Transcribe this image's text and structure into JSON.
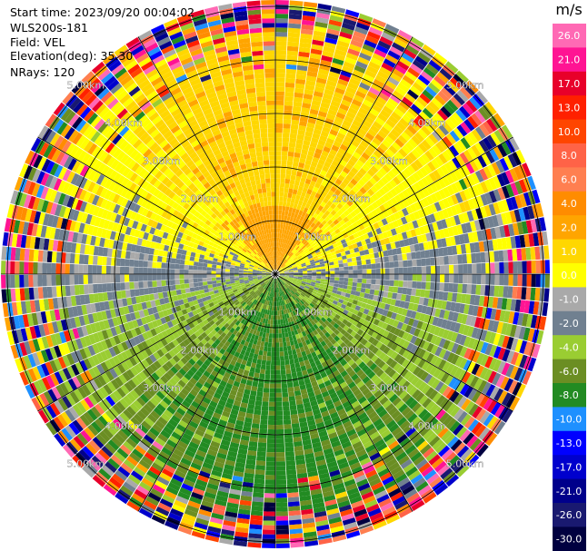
{
  "header": {
    "start_time": "Start time: 2023/09/20 00:04:02",
    "station": "WLS200s-181",
    "field": "Field: VEL",
    "elevation": "Elevation(deg): 35.30",
    "nrays": "NRays: 120"
  },
  "chart_data": {
    "type": "heatmap",
    "subtype": "polar-ppi",
    "nrays": 120,
    "ring_labels": [
      "1.00km",
      "2.00km",
      "3.00km",
      "4.00km",
      "5.00km"
    ],
    "ring_label_sides": [
      "upper-left",
      "upper-right",
      "lower-left",
      "lower-right"
    ],
    "colorbar": {
      "title": "m/s",
      "ticks": [
        "26.0",
        "21.0",
        "17.0",
        "13.0",
        "10.0",
        "8.0",
        "6.0",
        "4.0",
        "2.0",
        "1.0",
        "0.0",
        "-1.0",
        "-2.0",
        "-4.0",
        "-6.0",
        "-8.0",
        "-10.0",
        "-13.0",
        "-17.0",
        "-21.0",
        "-26.0",
        "-30.0"
      ],
      "colors": [
        "#ff69b4",
        "#ff1493",
        "#e8002a",
        "#ff2000",
        "#ff4500",
        "#ff6347",
        "#ff7f50",
        "#ff8c00",
        "#ffa500",
        "#ffd700",
        "#ffff00",
        "#a9a9a9",
        "#708090",
        "#9acd32",
        "#6b8e23",
        "#228b22",
        "#1e90ff",
        "#0000ff",
        "#0000cd",
        "#00008b",
        "#191970",
        "#000040"
      ]
    },
    "velocity_pattern": "positive (yellow/orange) in northern half, negative (green) in southern half, grey near zero along east-west axis, noisy multicolor beyond ~4.5km"
  }
}
